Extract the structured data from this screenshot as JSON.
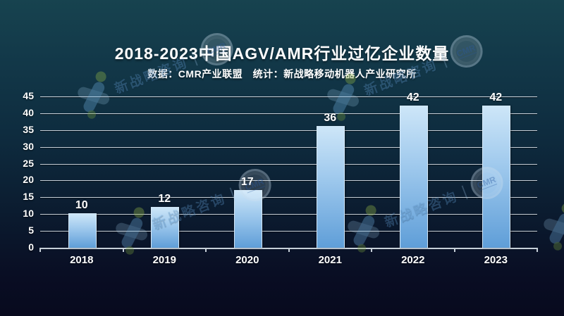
{
  "chart_data": {
    "type": "bar",
    "title": "2018-2023中国AGV/AMR行业过亿企业数量",
    "subtitle": "数据：CMR产业联盟　统计：新战略移动机器人产业研究所",
    "categories": [
      "2018",
      "2019",
      "2020",
      "2021",
      "2022",
      "2023"
    ],
    "values": [
      10,
      12,
      17,
      36,
      42,
      42
    ],
    "xlabel": "",
    "ylabel": "",
    "ylim": [
      0,
      45
    ],
    "ytick_step": 5,
    "grid": true,
    "legend": false,
    "bar_value_labels_shown": true
  },
  "colors": {
    "background_top": "#17434f",
    "background_bottom": "#080a1e",
    "bar_top": "#cde6f8",
    "bar_bottom": "#5f9ed8",
    "bar_border": "#dbedfb",
    "gridline": "#c6cfd8",
    "text": "#ffffff",
    "watermark_blue": "#69a5dc",
    "watermark_green": "#96b946"
  },
  "watermark": {
    "brand_text": "新战略咨询",
    "separator": "|",
    "badge_label": "CMR"
  }
}
